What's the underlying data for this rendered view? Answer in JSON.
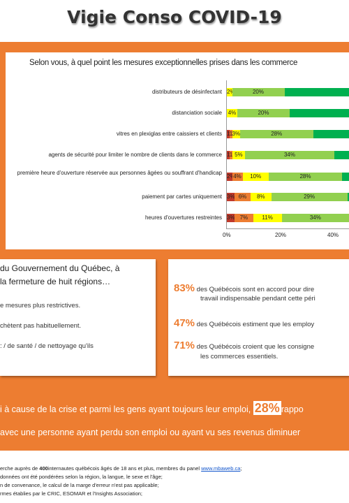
{
  "header": {
    "title": "Vigie Conso COVID-19"
  },
  "chart_data": {
    "type": "bar",
    "title": "Selon vous, à quel point les mesures exceptionnelles prises dans les commerce",
    "categories": [
      "distributeurs de désinfectant",
      "distanciation sociale",
      "vitres en plexiglas entre caissiers et clients",
      "agents de sécurité pour limiter le nombre de clients dans le commerce",
      "première heure d'ouverture réservée aux personnes âgées ou souffrant d'handicap",
      "paiement par cartes uniquement",
      "heures d'ouvertures restreintes"
    ],
    "series": [
      {
        "values": [
          0,
          0,
          1,
          1,
          2,
          3,
          3
        ],
        "color": "#c0392b"
      },
      {
        "values": [
          0,
          0,
          1,
          1,
          4,
          6,
          7
        ],
        "color": "#ed7d31"
      },
      {
        "values": [
          2,
          4,
          3,
          5,
          10,
          8,
          11
        ],
        "color": "#ffff00"
      },
      {
        "values": [
          20,
          20,
          28,
          34,
          28,
          29,
          34
        ],
        "color": "#92d050"
      },
      {
        "values": [
          78,
          76,
          67,
          59,
          56,
          54,
          45
        ],
        "color": "#00b050"
      }
    ],
    "labels": [
      [
        "",
        "",
        "2%",
        "20%",
        ""
      ],
      [
        "",
        "",
        "4%",
        "20%",
        ""
      ],
      [
        "1%",
        "1%",
        "3%",
        "28%",
        ""
      ],
      [
        "1%",
        "1%",
        "5%",
        "34%",
        ""
      ],
      [
        "2%",
        "4%",
        "10%",
        "28%",
        ""
      ],
      [
        "3%",
        "6%",
        "8%",
        "29%",
        ""
      ],
      [
        "3%",
        "7%",
        "11%",
        "34%",
        ""
      ]
    ],
    "x_ticks": [
      "0%",
      "20%",
      "40%"
    ],
    "xlim": [
      0,
      100
    ]
  },
  "left_panel": {
    "line1": "du Gouvernement  du Québec, à",
    "line2": "la fermeture de huit régions…",
    "item1": "e mesures  plus restrictives.",
    "item2": "chètent  pas habituellement.",
    "item3": ":  / de santé  / de nettoyage  qu'ils"
  },
  "right_panel": {
    "s1_pct": "83%",
    "s1_text": "des Québécois sont en accord pour dire",
    "s1_text2": "travail indispensable  pendant  cette péri",
    "s2_pct": "47%",
    "s2_text": "des Québécois estiment  que les employ",
    "s3_pct": "71%",
    "s3_text": "des Québécois croient que les consigne",
    "s3_text2": "les commerces essentiels."
  },
  "bottom": {
    "line1_pre": "i à cause de la crise et parmi les gens ayant toujours leur emploi,",
    "line1_pct": "28%",
    "line1_post": "rappo",
    "line2": "avec une personne ayant perdu son emploi ou ayant vu ses revenus diminuer"
  },
  "footer": {
    "l1_pre": "erche auprès de ",
    "l1_num": "400",
    "l1_mid": "internautes québécois âgés de 18 ans et plus, membres du panel ",
    "l1_link": "www.mbaweb.ca",
    "l1_end": ";",
    "l2": " données ont été pondérées selon la région, la langue, le sexe et l'âge;",
    "l3": "n de convenance, le calcul de la marge d'erreur n'est pas applicable;",
    "l4": "rmes établies  par le CRIC, ESOMAR et l'Insights Association;"
  }
}
